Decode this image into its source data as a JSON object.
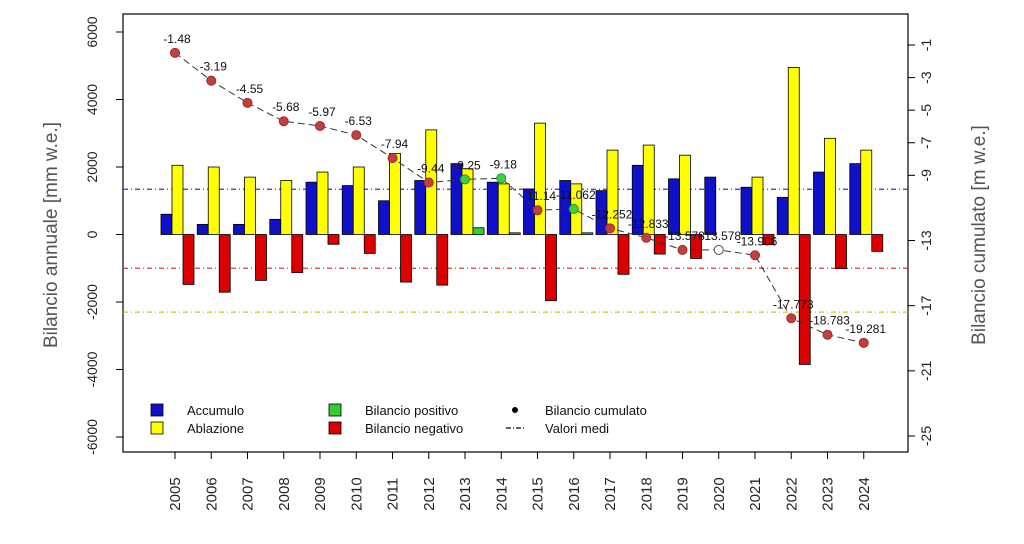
{
  "chart_data": {
    "type": "bar",
    "title": "",
    "ylabel": "Bilancio annuale [mm w.e.]",
    "y2label": "Bilancio cumulato [m w.e.]",
    "ylim": [
      -6000,
      6000
    ],
    "y_ticks": [
      6000,
      4000,
      2000,
      0,
      -2000,
      -4000,
      -6000
    ],
    "y2lim": [
      -25,
      1
    ],
    "y2_ticks": [
      -1,
      -3,
      -5,
      -7,
      -9,
      -13,
      -17,
      -21,
      -25
    ],
    "categories": [
      "2005",
      "2006",
      "2007",
      "2008",
      "2009",
      "2010",
      "2011",
      "2012",
      "2013",
      "2014",
      "2015",
      "2016",
      "2017",
      "2018",
      "2019",
      "2020",
      "2021",
      "2022",
      "2023",
      "2024"
    ],
    "series": [
      {
        "name": "Accumulo",
        "color": "#1010c8",
        "values": [
          600,
          300,
          300,
          450,
          1550,
          1450,
          1000,
          1600,
          2100,
          1550,
          1350,
          1600,
          1300,
          2050,
          1650,
          1700,
          1400,
          1100,
          1850,
          2100
        ]
      },
      {
        "name": "Ablazione",
        "color": "#ffff00",
        "values": [
          2050,
          2000,
          1700,
          1600,
          1850,
          2000,
          2400,
          3100,
          1950,
          1500,
          3300,
          1500,
          2500,
          2650,
          2350,
          null,
          1700,
          4950,
          2850,
          2500
        ]
      },
      {
        "name": "Bilancio positivo",
        "color": "#33cc33",
        "values": [
          null,
          null,
          null,
          null,
          null,
          null,
          null,
          null,
          200,
          50,
          null,
          50,
          null,
          null,
          null,
          null,
          null,
          null,
          null,
          null
        ]
      },
      {
        "name": "Bilancio negativo",
        "color": "#dd0000",
        "values": [
          -1480,
          -1710,
          -1360,
          -1130,
          -290,
          -560,
          -1410,
          -1500,
          null,
          null,
          -1960,
          null,
          -1180,
          -580,
          -710,
          null,
          -300,
          -3850,
          -1010,
          -500
        ]
      },
      {
        "name": "Bilancio cumulato",
        "color": "#c04040",
        "values": [
          -1.48,
          -3.19,
          -4.55,
          -5.68,
          -5.97,
          -6.53,
          -7.94,
          -9.44,
          -9.25,
          -9.18,
          -11.14,
          -11.062,
          -12.252,
          -12.833,
          -13.578,
          -13.578,
          -13.906,
          -17.773,
          -18.783,
          -19.281
        ]
      }
    ],
    "point_labels": [
      "-1.48",
      "-3.19",
      "-4.55",
      "-5.68",
      "-5.97",
      "-6.53",
      "-7.94",
      "-9.44",
      "-9.25",
      "-9.18",
      "-11.14",
      "-11.062",
      "-12.252",
      "-12.833",
      "-13.578",
      "-13.578",
      "-13.906",
      "-17.773",
      "-18.783",
      "-19.281"
    ],
    "point_styles": [
      "filled",
      "filled",
      "filled",
      "filled",
      "filled",
      "filled",
      "filled",
      "filled",
      "green",
      "green",
      "filled",
      "green",
      "filled",
      "filled",
      "filled",
      "hollow",
      "filled",
      "filled",
      "filled",
      "filled"
    ],
    "mean_lines": [
      {
        "value": 1340,
        "color": "#3333dd"
      },
      {
        "value": -1000,
        "color": "#dd3333"
      },
      {
        "value": -2300,
        "color": "#cccc00"
      }
    ],
    "legend": {
      "position": "bottom-left",
      "items": [
        {
          "label": "Accumulo",
          "symbol": "box",
          "color": "#1010c8"
        },
        {
          "label": "Ablazione",
          "symbol": "box",
          "color": "#ffff00"
        },
        {
          "label": "Bilancio positivo",
          "symbol": "box",
          "color": "#33cc33"
        },
        {
          "label": "Bilancio negativo",
          "symbol": "box",
          "color": "#dd0000"
        },
        {
          "label": "Bilancio cumulato",
          "symbol": "dot",
          "color": "#000000"
        },
        {
          "label": "Valori medi",
          "symbol": "dash",
          "color": "#000000"
        }
      ]
    },
    "grid": false
  }
}
